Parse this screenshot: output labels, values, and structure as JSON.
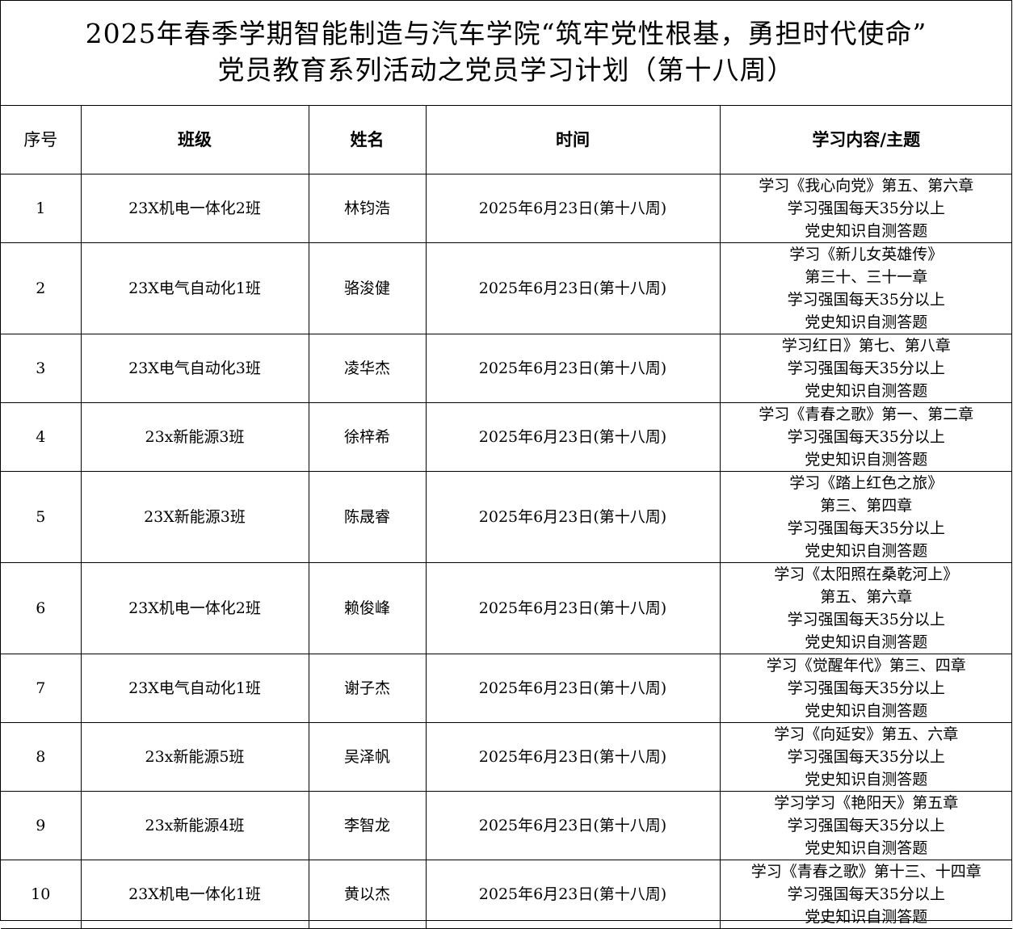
{
  "title": {
    "line1": "2025年春季学期智能制造与汽车学院“筑牢党性根基，勇担时代使命”",
    "line2": "党员教育系列活动之党员学习计划（第十八周）"
  },
  "table": {
    "headers": [
      "序号",
      "班级",
      "姓名",
      "时间",
      "学习内容/主题"
    ],
    "rows": [
      {
        "no": "1",
        "class": "23X机电一体化2班",
        "name": "林钧浩",
        "time": "2025年6月23日(第十八周)",
        "content": [
          "学习《我心向党》第五、第六章",
          "学习强国每天35分以上",
          "党史知识自测答题"
        ]
      },
      {
        "no": "2",
        "class": "23X电气自动化1班",
        "name": "骆浚健",
        "time": "2025年6月23日(第十八周)",
        "content": [
          "学习《新儿女英雄传》",
          "第三十、三十一章",
          "学习强国每天35分以上",
          "党史知识自测答题"
        ]
      },
      {
        "no": "3",
        "class": "23X电气自动化3班",
        "name": "凌华杰",
        "time": "2025年6月23日(第十八周)",
        "content": [
          "学习红日》第七、第八章",
          "学习强国每天35分以上",
          "党史知识自测答题"
        ]
      },
      {
        "no": "4",
        "class": "23x新能源3班",
        "name": "徐梓希",
        "time": "2025年6月23日(第十八周)",
        "content": [
          "学习《青春之歌》第一、第二章",
          "学习强国每天35分以上",
          "党史知识自测答题"
        ]
      },
      {
        "no": "5",
        "class": "23X新能源3班",
        "name": "陈晟睿",
        "time": "2025年6月23日(第十八周)",
        "content": [
          "学习《踏上红色之旅》",
          "第三、第四章",
          "学习强国每天35分以上",
          "党史知识自测答题"
        ]
      },
      {
        "no": "6",
        "class": "23X机电一体化2班",
        "name": "赖俊峰",
        "time": "2025年6月23日(第十八周)",
        "content": [
          "学习《太阳照在桑乾河上》",
          "第五、第六章",
          "学习强国每天35分以上",
          "党史知识自测答题"
        ]
      },
      {
        "no": "7",
        "class": "23X电气自动化1班",
        "name": "谢子杰",
        "time": "2025年6月23日(第十八周)",
        "content": [
          "学习《觉醒年代》第三、四章",
          "学习强国每天35分以上",
          "党史知识自测答题"
        ]
      },
      {
        "no": "8",
        "class": "23x新能源5班",
        "name": "吴泽帆",
        "time": "2025年6月23日(第十八周)",
        "content": [
          "学习《向延安》第五、六章",
          "学习强国每天35分以上",
          "党史知识自测答题"
        ]
      },
      {
        "no": "9",
        "class": "23x新能源4班",
        "name": "李智龙",
        "time": "2025年6月23日(第十八周)",
        "content": [
          "学习学习《艳阳天》第五章",
          "学习强国每天35分以上",
          "党史知识自测答题"
        ]
      },
      {
        "no": "10",
        "class": "23X机电一体化1班",
        "name": "黄以杰",
        "time": "2025年6月23日(第十八周)",
        "content": [
          "学习《青春之歌》第十三、十四章",
          "学习强国每天35分以上",
          "党史知识自测答题"
        ]
      }
    ]
  }
}
